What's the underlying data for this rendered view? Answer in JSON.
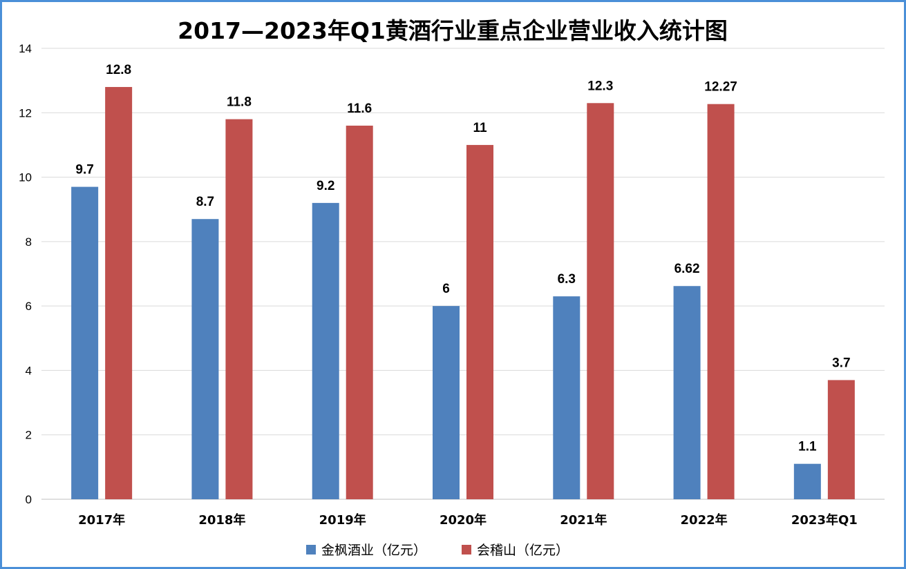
{
  "chart_data": {
    "type": "bar",
    "title": "2017—2023年Q1黄酒行业重点企业营业收入统计图",
    "categories": [
      "2017年",
      "2018年",
      "2019年",
      "2020年",
      "2021年",
      "2022年",
      "2023年Q1"
    ],
    "series": [
      {
        "name": "金枫酒业（亿元）",
        "color": "#4f81bd",
        "values": [
          9.7,
          8.7,
          9.2,
          6,
          6.3,
          6.62,
          1.1
        ]
      },
      {
        "name": "会稽山（亿元）",
        "color": "#c0504d",
        "values": [
          12.8,
          11.8,
          11.6,
          11,
          12.3,
          12.27,
          3.7
        ]
      }
    ],
    "ylim": [
      0,
      14
    ],
    "yticks": [
      0,
      2,
      4,
      6,
      8,
      10,
      12,
      14
    ],
    "xlabel": "",
    "ylabel": "",
    "grid": true,
    "legend_position": "bottom",
    "frame_color": "#4a8fd8"
  }
}
